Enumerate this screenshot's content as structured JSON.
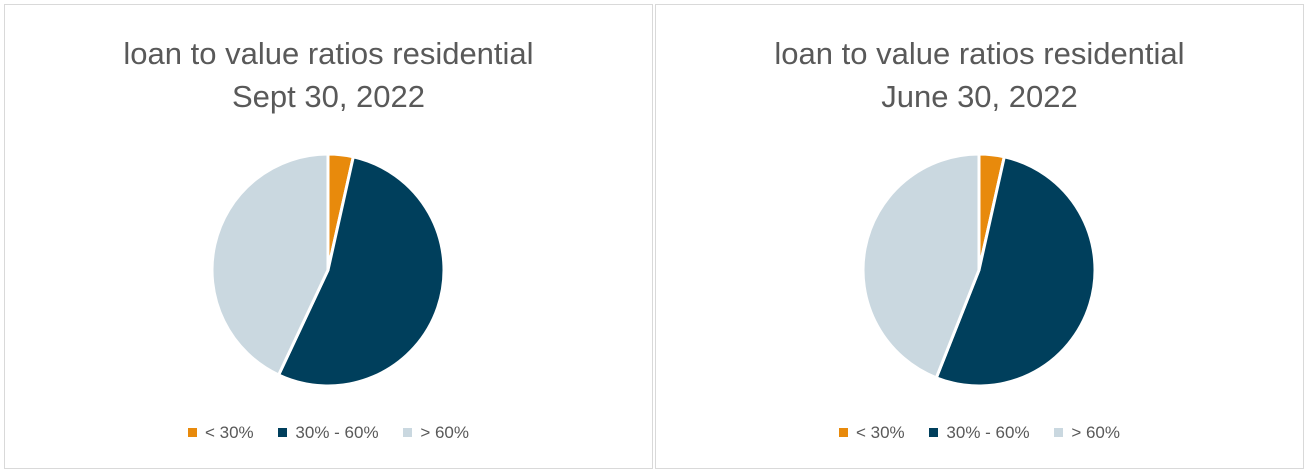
{
  "chart_data": [
    {
      "type": "pie",
      "title": "loan to value ratios residential",
      "subtitle": "Sept 30, 2022",
      "legend_position": "bottom",
      "series": [
        {
          "name": "< 30%",
          "value": 3.5,
          "color": "#E88A0C"
        },
        {
          "name": "30% - 60%",
          "value": 53.5,
          "color": "#003F5C"
        },
        {
          "name": "> 60%",
          "value": 43.0,
          "color": "#CAD8E0"
        }
      ]
    },
    {
      "type": "pie",
      "title": "loan to value ratios residential",
      "subtitle": "June 30, 2022",
      "legend_position": "bottom",
      "series": [
        {
          "name": "< 30%",
          "value": 3.5,
          "color": "#E88A0C"
        },
        {
          "name": "30% - 60%",
          "value": 52.5,
          "color": "#003F5C"
        },
        {
          "name": "> 60%",
          "value": 44.0,
          "color": "#CAD8E0"
        }
      ]
    }
  ]
}
